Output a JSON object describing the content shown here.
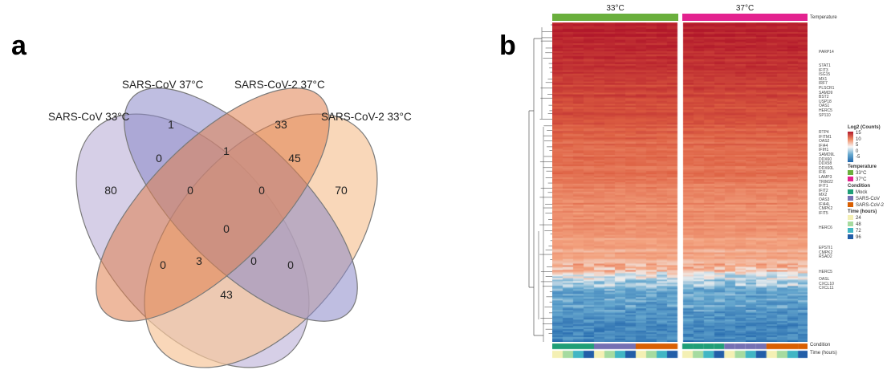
{
  "panel_a": {
    "letter": "a",
    "sets": [
      {
        "label": "SARS-CoV 33°C",
        "color": "#c8bfdf"
      },
      {
        "label": "SARS-CoV 37°C",
        "color": "#8b88c9"
      },
      {
        "label": "SARS-CoV-2 37°C",
        "color": "#e0804e"
      },
      {
        "label": "SARS-CoV-2 33°C",
        "color": "#f7c69b"
      }
    ],
    "counts": [
      "80",
      "1",
      "33",
      "70",
      "0",
      "1",
      "45",
      "0",
      "0",
      "0",
      "0",
      "3",
      "0",
      "0",
      "43"
    ]
  },
  "panel_b": {
    "letter": "b",
    "temp_headers": [
      "33°C",
      "37°C"
    ],
    "temperature_label": "Temperature",
    "condition_label": "Condition",
    "time_label": "Time (hours)",
    "gene_top": "PARP14",
    "genes_group1": [
      "STAT1",
      "IFIT3",
      "ISG15",
      "MX1",
      "IRF7",
      "PLSCR1",
      "SAMD9",
      "BST2",
      "USP18",
      "OAS1",
      "HERC5",
      "SP110"
    ],
    "genes_group2": [
      "RTP4",
      "IFITM1",
      "OAS2",
      "IFI44",
      "IFIH1",
      "SAMD9L",
      "DDX60",
      "DDX58",
      "DDX60L",
      "IFI6",
      "LAMP3",
      "TRIM22",
      "IFIT1",
      "IFIT2",
      "MX2",
      "OAS3",
      "IFI44L",
      "CMPK2",
      "IFIT5"
    ],
    "gene_mid": "HERC6",
    "genes_group3": [
      "EPSTI1",
      "CMPK2",
      "RSAD2"
    ],
    "gene_low": "HERC5",
    "genes_group4": [
      "OASL",
      "CXCL10",
      "CXCL11"
    ],
    "legend": {
      "log2_title": "Log2 (Counts)",
      "log2_ticks": [
        "15",
        "10",
        "5",
        "0",
        "-5"
      ],
      "temp_title": "Temperature",
      "temps": [
        {
          "label": "33°C",
          "color": "#6aaf3d"
        },
        {
          "label": "37°C",
          "color": "#e3228f"
        }
      ],
      "cond_title": "Condition",
      "conds": [
        {
          "label": "Mock",
          "color": "#1f9e77"
        },
        {
          "label": "SARS-CoV",
          "color": "#7570b3"
        },
        {
          "label": "SARS-CoV-2",
          "color": "#d95f02"
        }
      ],
      "time_title": "Time (hours)",
      "times": [
        {
          "label": "24",
          "color": "#f4f0b4"
        },
        {
          "label": "48",
          "color": "#a6dba0"
        },
        {
          "label": "72",
          "color": "#41b6c4"
        },
        {
          "label": "96",
          "color": "#225ea8"
        }
      ]
    }
  }
}
